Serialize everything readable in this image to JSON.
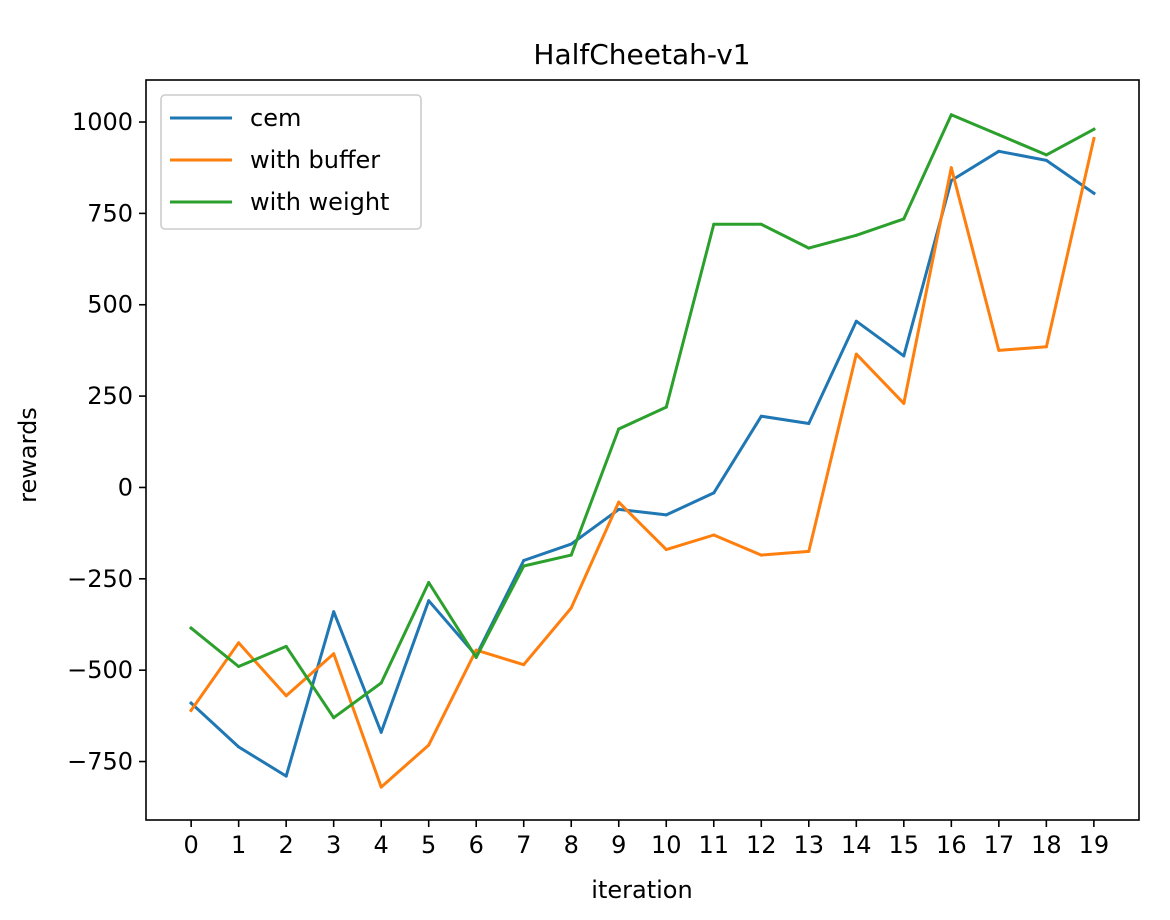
{
  "chart_data": {
    "type": "line",
    "title": "HalfCheetah-v1",
    "xlabel": "iteration",
    "ylabel": "rewards",
    "x": [
      0,
      1,
      2,
      3,
      4,
      5,
      6,
      7,
      8,
      9,
      10,
      11,
      12,
      13,
      14,
      15,
      16,
      17,
      18,
      19
    ],
    "xlim": [
      -0.95,
      19.95
    ],
    "ylim": [
      -910,
      1115
    ],
    "yticks": [
      -750,
      -500,
      -250,
      0,
      250,
      500,
      750,
      1000
    ],
    "ytick_labels": [
      "−750",
      "−500",
      "−250",
      "0",
      "250",
      "500",
      "750",
      "1000"
    ],
    "grid": false,
    "legend": "top-left",
    "series": [
      {
        "name": "cem",
        "color": "#1f77b4",
        "values": [
          -590,
          -710,
          -790,
          -340,
          -670,
          -310,
          -460,
          -200,
          -155,
          -60,
          -75,
          -15,
          195,
          175,
          455,
          360,
          840,
          920,
          895,
          805
        ]
      },
      {
        "name": "with buffer",
        "color": "#ff7f0e",
        "values": [
          -610,
          -425,
          -570,
          -455,
          -820,
          -705,
          -445,
          -485,
          -330,
          -40,
          -170,
          -130,
          -185,
          -175,
          365,
          230,
          875,
          375,
          385,
          955
        ]
      },
      {
        "name": "with weight",
        "color": "#2ca02c",
        "values": [
          -385,
          -490,
          -435,
          -630,
          -535,
          -260,
          -465,
          -215,
          -185,
          160,
          220,
          720,
          720,
          655,
          690,
          735,
          1020,
          965,
          910,
          980
        ]
      }
    ]
  }
}
